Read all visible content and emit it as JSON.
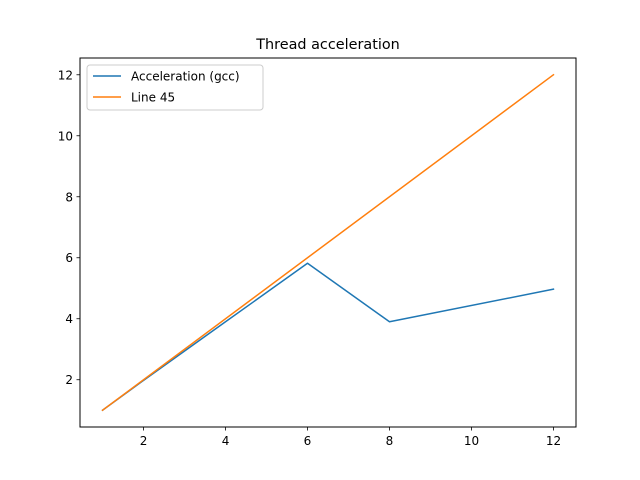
{
  "chart_data": {
    "type": "line",
    "title": "Thread acceleration",
    "xlabel": "",
    "ylabel": "",
    "xlim": [
      0.45,
      12.55
    ],
    "ylim": [
      0.45,
      12.55
    ],
    "xticks": [
      2,
      4,
      6,
      8,
      10,
      12
    ],
    "yticks": [
      2,
      4,
      6,
      8,
      10,
      12
    ],
    "grid": false,
    "legend_position": "upper left",
    "series": [
      {
        "name": "Acceleration (gcc)",
        "color": "#1f77b4",
        "x": [
          1,
          2,
          4,
          6,
          8,
          12
        ],
        "y": [
          1.0,
          1.98,
          3.9,
          5.82,
          3.9,
          4.97
        ]
      },
      {
        "name": "Line 45",
        "color": "#ff7f0e",
        "x": [
          1,
          12
        ],
        "y": [
          1,
          12
        ]
      }
    ]
  }
}
